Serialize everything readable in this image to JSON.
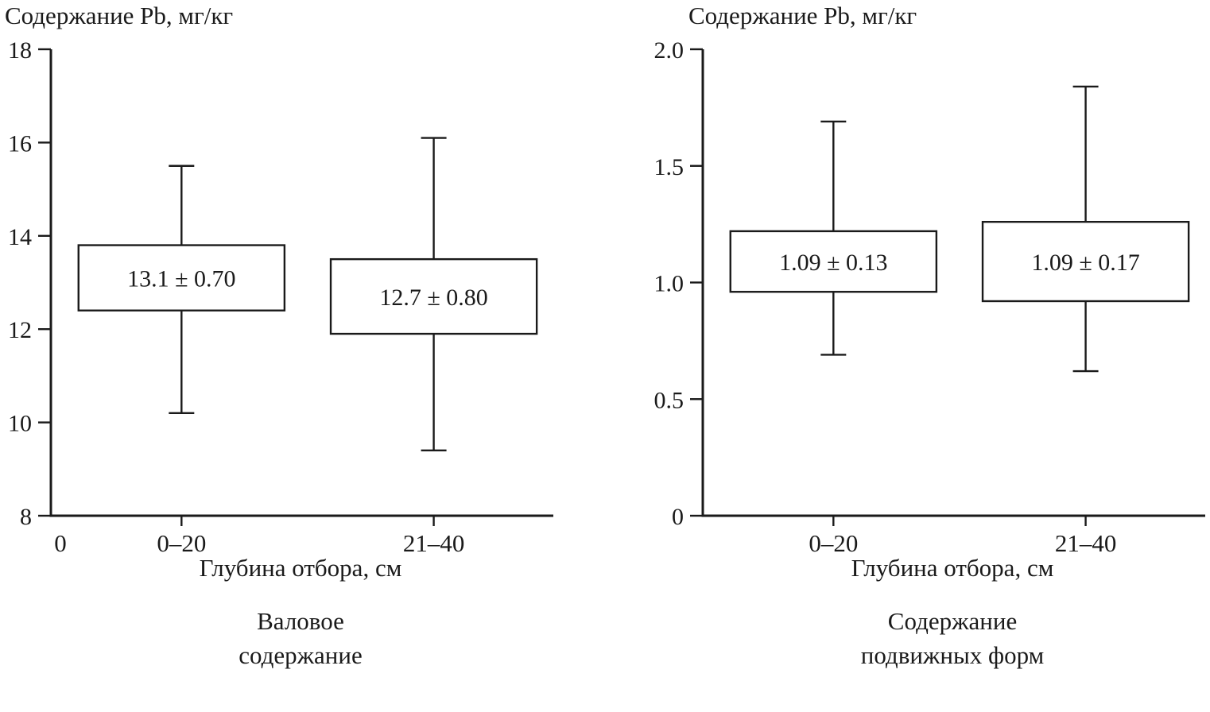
{
  "page": {
    "background": "#ffffff",
    "stroke_color": "#1a1a1a"
  },
  "chart_data": [
    {
      "type": "box",
      "title": "Содержание Pb, мг/кг",
      "xlabel": "Глубина отбора, см",
      "caption_line1": "Валовое",
      "caption_line2": "содержание",
      "ylim": [
        8,
        18
      ],
      "yticks": [
        8,
        10,
        12,
        14,
        16,
        18
      ],
      "ytick_labels": [
        "8",
        "10",
        "12",
        "14",
        "16",
        "18"
      ],
      "origin_label": "0",
      "grid": false,
      "legend": "none",
      "categories": [
        "0–20",
        "21–40"
      ],
      "boxes": [
        {
          "category": "0–20",
          "label": "13.1 ± 0.70",
          "mean": 13.1,
          "sd": 0.7,
          "box_low": 12.4,
          "box_high": 13.8,
          "whisker_low": 10.2,
          "whisker_high": 15.5
        },
        {
          "category": "21–40",
          "label": "12.7 ± 0.80",
          "mean": 12.7,
          "sd": 0.8,
          "box_low": 11.9,
          "box_high": 13.5,
          "whisker_low": 9.4,
          "whisker_high": 16.1
        }
      ]
    },
    {
      "type": "box",
      "title": "Содержание Pb, мг/кг",
      "xlabel": "Глубина отбора, см",
      "caption_line1": "Содержание",
      "caption_line2": "подвижных форм",
      "ylim": [
        0,
        2.0
      ],
      "yticks": [
        0,
        0.5,
        1.0,
        1.5,
        2.0
      ],
      "ytick_labels": [
        "0",
        "0.5",
        "1.0",
        "1.5",
        "2.0"
      ],
      "origin_label": "",
      "grid": false,
      "legend": "none",
      "categories": [
        "0–20",
        "21–40"
      ],
      "boxes": [
        {
          "category": "0–20",
          "label": "1.09 ± 0.13",
          "mean": 1.09,
          "sd": 0.13,
          "box_low": 0.96,
          "box_high": 1.22,
          "whisker_low": 0.69,
          "whisker_high": 1.69
        },
        {
          "category": "21–40",
          "label": "1.09 ± 0.17",
          "mean": 1.09,
          "sd": 0.17,
          "box_low": 0.92,
          "box_high": 1.26,
          "whisker_low": 0.62,
          "whisker_high": 1.84
        }
      ]
    }
  ]
}
